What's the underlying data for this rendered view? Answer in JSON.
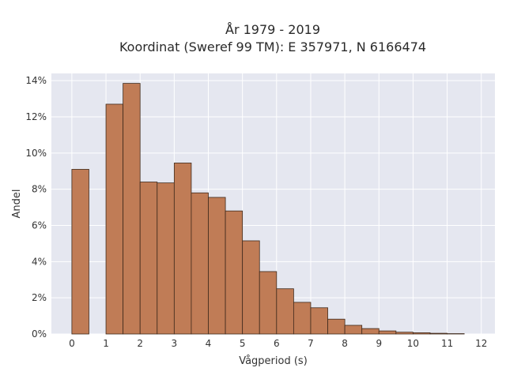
{
  "chart_data": {
    "type": "bar",
    "title": "År 1979 - 2019",
    "subtitle": "Koordinat (Sweref 99 TM): E 357971, N 6166474",
    "xlabel": "Vågperiod (s)",
    "ylabel": "Andel",
    "xlim": [
      -0.6,
      12.4
    ],
    "ylim": [
      0,
      14.4
    ],
    "x_ticks": [
      0,
      1,
      2,
      3,
      4,
      5,
      6,
      7,
      8,
      9,
      10,
      11,
      12
    ],
    "y_ticks": [
      0,
      2,
      4,
      6,
      8,
      10,
      12,
      14
    ],
    "y_tick_labels": [
      "0%",
      "2%",
      "4%",
      "6%",
      "8%",
      "10%",
      "12%",
      "14%"
    ],
    "bins": [
      {
        "x0": 0.0,
        "x1": 0.5,
        "value": 9.1
      },
      {
        "x0": 1.0,
        "x1": 1.5,
        "value": 12.7
      },
      {
        "x0": 1.5,
        "x1": 2.0,
        "value": 13.85
      },
      {
        "x0": 2.0,
        "x1": 2.5,
        "value": 8.4
      },
      {
        "x0": 2.5,
        "x1": 3.0,
        "value": 8.35
      },
      {
        "x0": 3.0,
        "x1": 3.5,
        "value": 9.45
      },
      {
        "x0": 3.5,
        "x1": 4.0,
        "value": 7.8
      },
      {
        "x0": 4.0,
        "x1": 4.5,
        "value": 7.55
      },
      {
        "x0": 4.5,
        "x1": 5.0,
        "value": 6.8
      },
      {
        "x0": 5.0,
        "x1": 5.5,
        "value": 5.15
      },
      {
        "x0": 5.5,
        "x1": 6.0,
        "value": 3.45
      },
      {
        "x0": 6.0,
        "x1": 6.5,
        "value": 2.5
      },
      {
        "x0": 6.5,
        "x1": 7.0,
        "value": 1.75
      },
      {
        "x0": 7.0,
        "x1": 7.5,
        "value": 1.45
      },
      {
        "x0": 7.5,
        "x1": 8.0,
        "value": 0.82
      },
      {
        "x0": 8.0,
        "x1": 8.5,
        "value": 0.48
      },
      {
        "x0": 8.5,
        "x1": 9.0,
        "value": 0.3
      },
      {
        "x0": 9.0,
        "x1": 9.5,
        "value": 0.17
      },
      {
        "x0": 9.5,
        "x1": 10.0,
        "value": 0.1
      },
      {
        "x0": 10.0,
        "x1": 10.5,
        "value": 0.07
      },
      {
        "x0": 10.5,
        "x1": 11.0,
        "value": 0.04
      },
      {
        "x0": 11.0,
        "x1": 11.5,
        "value": 0.02
      }
    ],
    "grid": true,
    "legend": false,
    "colors": {
      "bar_fill": "#c07c56",
      "bar_edge": "#3f2a1c",
      "plot_background": "#e5e7f0",
      "grid": "#ffffff"
    }
  }
}
